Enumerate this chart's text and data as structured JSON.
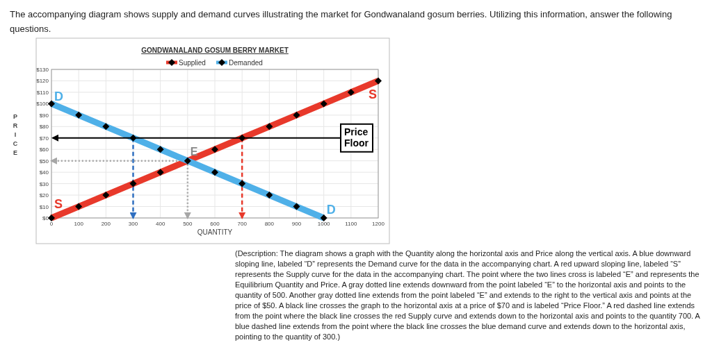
{
  "chart_data": {
    "type": "line",
    "title": "GONDWANALAND GOSUM BERRY MARKET",
    "xlabel": "QUANTITY",
    "ylabel": "PRICE",
    "xlim": [
      0,
      1200
    ],
    "xticks": [
      0,
      100,
      200,
      300,
      400,
      500,
      600,
      700,
      800,
      900,
      1000,
      1100,
      1200
    ],
    "ylim": [
      0,
      130
    ],
    "yticks": [
      {
        "value": 0,
        "label": "$0"
      },
      {
        "value": 10,
        "label": "$10"
      },
      {
        "value": 20,
        "label": "$20"
      },
      {
        "value": 30,
        "label": "$30"
      },
      {
        "value": 40,
        "label": "$40"
      },
      {
        "value": 50,
        "label": "$50"
      },
      {
        "value": 60,
        "label": "$60"
      },
      {
        "value": 70,
        "label": "$70"
      },
      {
        "value": 80,
        "label": "$80"
      },
      {
        "value": 90,
        "label": "$90"
      },
      {
        "value": 100,
        "label": "$100"
      },
      {
        "value": 110,
        "label": "$110"
      },
      {
        "value": 120,
        "label": "$120"
      },
      {
        "value": 130,
        "label": "$130"
      }
    ],
    "grid": true,
    "legend": "top",
    "marker": "diamond",
    "series": [
      {
        "name": "Supplied",
        "color": "#e8392b",
        "x": [
          0,
          100,
          200,
          300,
          400,
          500,
          600,
          700,
          800,
          900,
          1000,
          1100,
          1200
        ],
        "values": [
          0,
          10,
          20,
          30,
          40,
          50,
          60,
          70,
          80,
          90,
          100,
          110,
          120
        ]
      },
      {
        "name": "Demanded",
        "color": "#4fb0e8",
        "x": [
          0,
          100,
          200,
          300,
          400,
          500,
          600,
          700,
          800,
          900,
          1000
        ],
        "values": [
          100,
          90,
          80,
          70,
          60,
          50,
          40,
          30,
          20,
          10,
          0
        ]
      },
      {
        "color": "#2f6fc0",
        "x": [
          300,
          300
        ],
        "values": [
          70,
          0
        ],
        "line_style": "dashed",
        "marker": "none"
      },
      {
        "color": "#e8392b",
        "x": [
          700,
          700
        ],
        "values": [
          70,
          0
        ],
        "line_style": "dashed",
        "marker": "none"
      },
      {
        "color": "#a6a6a6",
        "x": [
          500,
          500
        ],
        "values": [
          50,
          0
        ],
        "line_style": "dotted",
        "marker": "none"
      },
      {
        "color": "#a6a6a6",
        "x": [
          500,
          0
        ],
        "values": [
          50,
          50
        ],
        "line_style": "dotted",
        "marker": "none"
      }
    ],
    "ref_lines": [
      {
        "axis": "y",
        "value": 70,
        "label": "Price Floor",
        "color": "#000000"
      }
    ],
    "annotations": [
      "The accompanying diagram shows supply and demand curves illustrating the market for Gondwanaland gosum berries. Utilizing this information, answer the following questions.",
      {
        "text": "D",
        "x": 0,
        "y": 100
      },
      {
        "text": "D",
        "x": 1000,
        "y": 0
      },
      {
        "text": "S",
        "x": 0,
        "y": 0
      },
      {
        "text": "S",
        "x": 1200,
        "y": 120
      },
      {
        "text": "E",
        "x": 500,
        "y": 50
      },
      "(Description: The diagram shows a graph with the Quantity along the horizontal axis and Price along the vertical axis. A blue downward sloping line, labeled “D” represents the Demand curve for the data in the accompanying chart. A red upward sloping line, labeled “S” represents the Supply curve for the data in the accompanying chart. The point where the two lines cross is labeled “E” and represents the Equilibrium Quantity and Price. A gray dotted line extends downward from the point labeled “E” to the horizontal axis and points to the quantity of 500. Another gray dotted line extends from the point labeled “E” and extends to the right to the vertical axis and points at the price of $50. A black line crosses the graph to the horizontal axis at a price of $70 and is labeled “Price Floor.” A red dashed line extends from the point where the black line crosses the red Supply curve and extends down to the horizontal axis and points to the quantity 700. A blue dashed line extends from the point where the black line crosses the blue demand curve and extends down to the horizontal axis, pointing to the quantity of 300.)"
    ]
  }
}
